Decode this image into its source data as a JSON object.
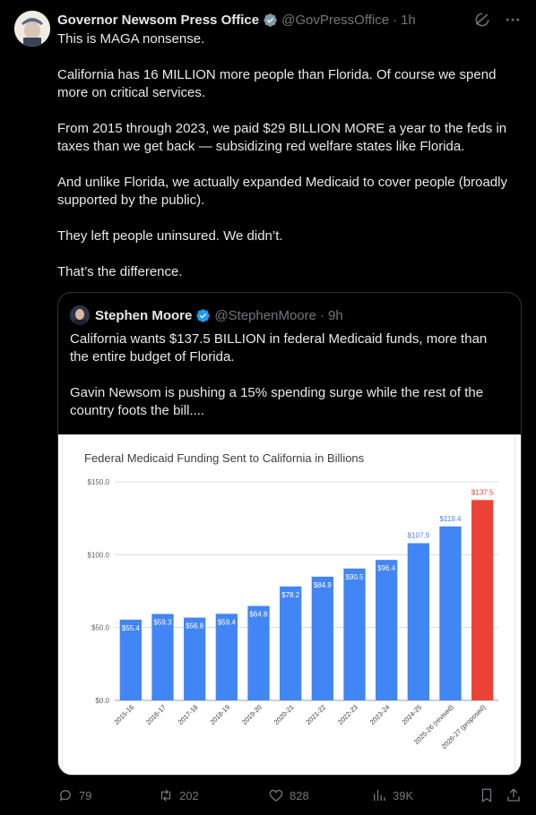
{
  "tweet": {
    "author_name": "Governor Newsom Press Office",
    "author_handle": "@GovPressOffice",
    "separator": "·",
    "time": "1h",
    "paragraphs": [
      "This is MAGA nonsense.",
      "California has 16 MILLION more people than Florida. Of course we spend more on critical services.",
      "From 2015 through 2023, we paid $29 BILLION MORE a year to the feds in taxes than we get back — subsidizing red welfare states like Florida.",
      "And unlike Florida, we actually expanded Medicaid to cover people (broadly supported by the public).",
      "They left people uninsured. We didn’t.",
      "That’s the difference."
    ]
  },
  "quote": {
    "author_name": "Stephen Moore",
    "author_handle": "@StephenMoore",
    "separator": "·",
    "time": "9h",
    "paragraphs": [
      "California wants $137.5 BILLION in federal Medicaid funds, more than the entire budget of Florida.",
      "Gavin Newsom is pushing a 15% spending surge while the rest of the country foots the bill...."
    ]
  },
  "chart_data": {
    "type": "bar",
    "title": "Federal Medicaid Funding Sent to California in Billions",
    "categories": [
      "2015-16",
      "2016-17",
      "2017-18",
      "2018-19",
      "2019-20",
      "2020-21",
      "2021-22",
      "2022-23",
      "2023-24",
      "2024-25",
      "2025-26 (revised)",
      "2026-27 (proposed)"
    ],
    "values": [
      55.4,
      59.3,
      56.8,
      59.4,
      64.8,
      78.2,
      84.9,
      90.5,
      96.4,
      107.9,
      119.4,
      137.5
    ],
    "value_labels": [
      "$55.4",
      "$59.3",
      "$56.8",
      "$59.4",
      "$64.8",
      "$78.2",
      "$84.9",
      "$90.5",
      "$96.4",
      "$107.9",
      "$119.4",
      "$137.5"
    ],
    "label_outside": [
      false,
      false,
      false,
      false,
      false,
      false,
      false,
      false,
      false,
      true,
      true,
      true
    ],
    "highlight_index": 11,
    "ylim": [
      0,
      150
    ],
    "yticks": [
      0,
      50,
      100,
      150
    ],
    "ytick_labels": [
      "$0.0",
      "$50.0",
      "$100.0",
      "$150.0"
    ],
    "grid": true,
    "colors": {
      "bar": "#4285f4",
      "highlight": "#ea4335",
      "label_outside_blue": "#4285f4",
      "label_outside_red": "#ea4335"
    }
  },
  "actions": {
    "replies": "79",
    "reposts": "202",
    "likes": "828",
    "views": "39K"
  },
  "icons": {
    "verified": "verified-badge-icon",
    "grok": "grok-icon",
    "more": "more-icon",
    "reply": "reply-icon",
    "repost": "repost-icon",
    "like": "like-icon",
    "views": "views-icon",
    "bookmark": "bookmark-icon",
    "share": "share-icon"
  },
  "colors": {
    "background": "#000000",
    "text": "#e7e9ea",
    "muted": "#71767b",
    "verified": "#1d9bf0",
    "border": "#2f3336"
  }
}
